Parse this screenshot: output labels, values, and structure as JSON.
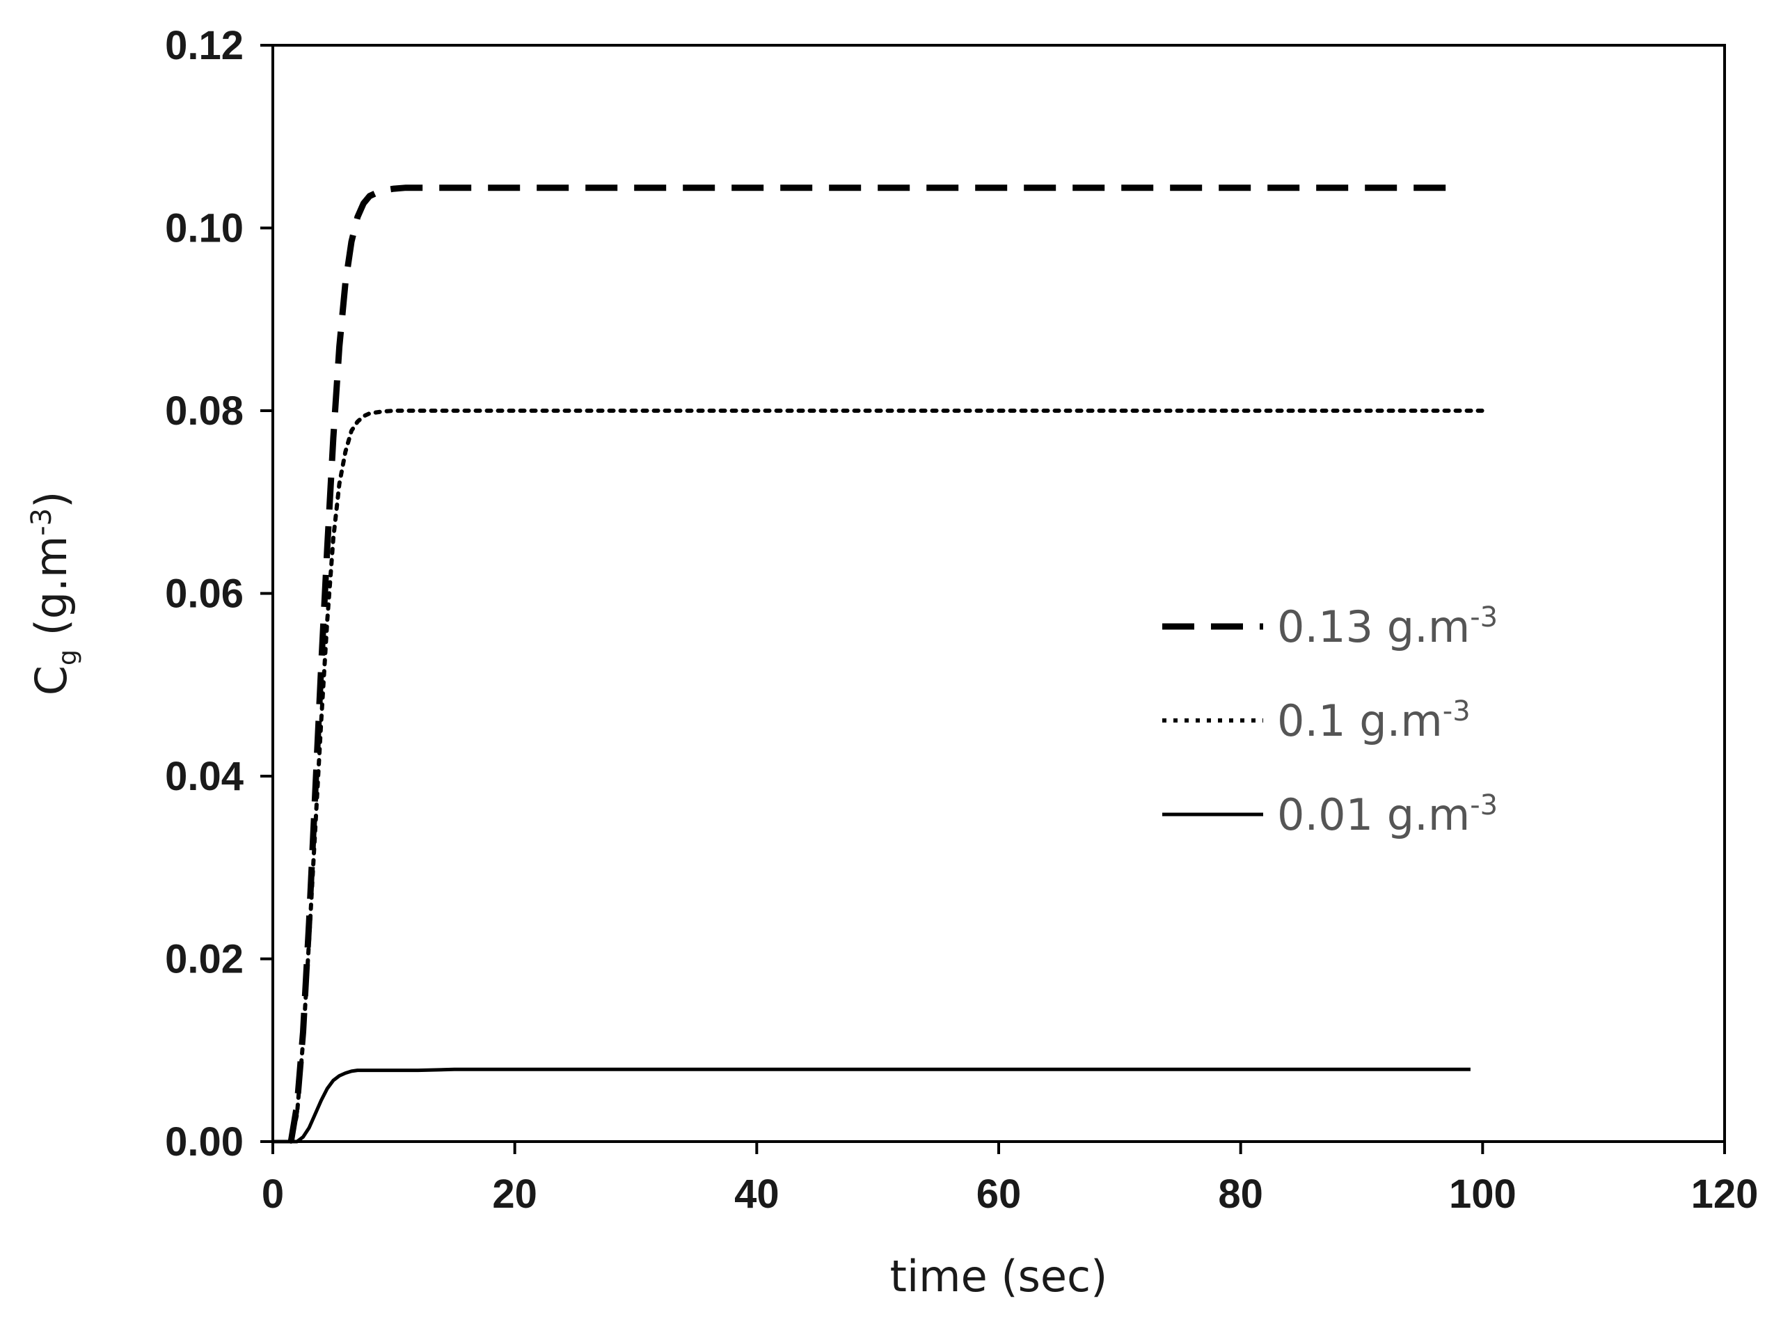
{
  "chart_data": {
    "type": "line",
    "title": "",
    "xlabel": "time (sec)",
    "ylabel": {
      "base": "C",
      "subscript": "g",
      "unit_open": " (g.m",
      "unit_exp": "-3",
      "unit_close": ")"
    },
    "xlim": [
      0,
      120
    ],
    "ylim": [
      0,
      0.12
    ],
    "x_ticks": [
      "0",
      "20",
      "40",
      "60",
      "80",
      "100",
      "120"
    ],
    "y_ticks": [
      "0.00",
      "0.02",
      "0.04",
      "0.06",
      "0.08",
      "0.10",
      "0.12"
    ],
    "grid": false,
    "legend_position": "right-middle",
    "series": [
      {
        "name": "0.13 g.m-3",
        "legend": {
          "value": "0.13 g.m",
          "exp": "-3"
        },
        "style": "dashed",
        "color": "#000000",
        "x": [
          1.5,
          2,
          2.5,
          3,
          3.5,
          4,
          4.5,
          5,
          5.5,
          6,
          6.5,
          7,
          7.5,
          8,
          9,
          10,
          11,
          12,
          14,
          20,
          40,
          60,
          80,
          98
        ],
        "y": [
          0.0,
          0.004,
          0.012,
          0.024,
          0.038,
          0.052,
          0.065,
          0.077,
          0.087,
          0.094,
          0.0985,
          0.1012,
          0.1027,
          0.1035,
          0.1041,
          0.1043,
          0.1044,
          0.1044,
          0.1044,
          0.1044,
          0.1044,
          0.1044,
          0.1044,
          0.1044
        ]
      },
      {
        "name": "0.1 g.m-3",
        "legend": {
          "value": "0.1 g.m",
          "exp": "-3"
        },
        "style": "dotted",
        "color": "#000000",
        "x": [
          1.5,
          2,
          2.5,
          3,
          3.5,
          4,
          4.5,
          5,
          5.5,
          6,
          6.5,
          7,
          7.5,
          8,
          9,
          10,
          11,
          12,
          14,
          20,
          40,
          60,
          80,
          100
        ],
        "y": [
          0.0,
          0.003,
          0.011,
          0.022,
          0.034,
          0.046,
          0.057,
          0.066,
          0.072,
          0.0755,
          0.0778,
          0.0788,
          0.0794,
          0.0797,
          0.0799,
          0.08,
          0.08,
          0.08,
          0.08,
          0.08,
          0.08,
          0.08,
          0.08,
          0.08
        ]
      },
      {
        "name": "0.01 g.m-3",
        "legend": {
          "value": "0.01 g.m",
          "exp": "-3"
        },
        "style": "solid",
        "color": "#000000",
        "x": [
          0,
          2,
          2.5,
          3,
          3.5,
          4,
          4.5,
          5,
          5.5,
          6,
          6.5,
          7,
          8,
          9,
          10,
          12,
          15,
          20,
          40,
          60,
          80,
          99
        ],
        "y": [
          0.0,
          0.0,
          0.0005,
          0.0015,
          0.003,
          0.0045,
          0.0058,
          0.0067,
          0.0072,
          0.0075,
          0.0077,
          0.0078,
          0.0078,
          0.0078,
          0.0078,
          0.0078,
          0.0079,
          0.0079,
          0.0079,
          0.0079,
          0.0079,
          0.0079
        ]
      }
    ]
  }
}
